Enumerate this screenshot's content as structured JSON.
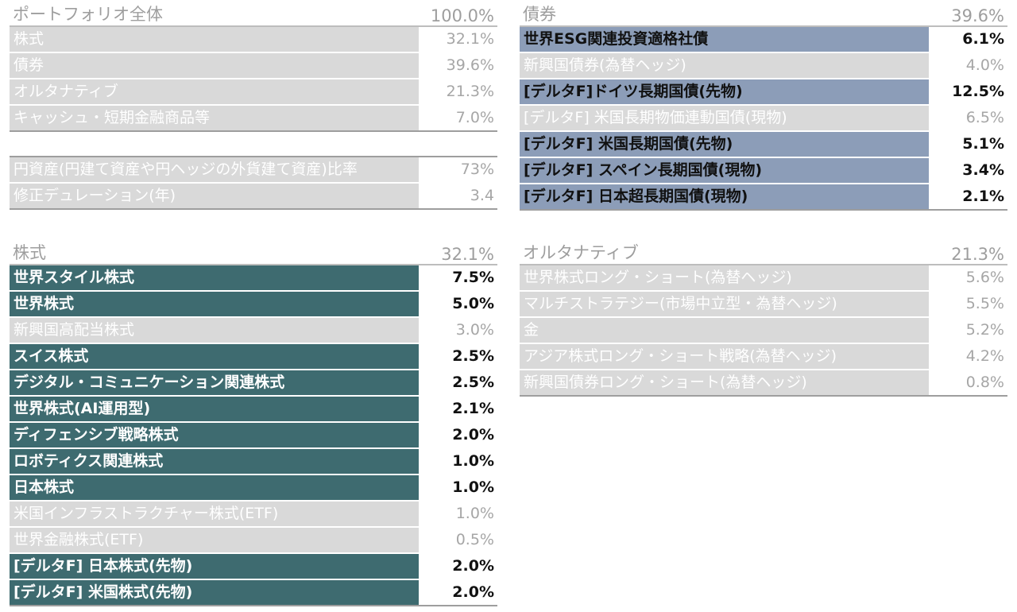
{
  "portfolio": {
    "title": "ポートフォリオ全体",
    "total": "100.0%",
    "rows": [
      {
        "label": "株式",
        "value": "32.1%"
      },
      {
        "label": "債券",
        "value": "39.6%"
      },
      {
        "label": "オルタナティブ",
        "value": "21.3%"
      },
      {
        "label": "キャッシュ・短期金融商品等",
        "value": "7.0%"
      }
    ],
    "extra_rows": [
      {
        "label": "円資産(円建て資産や円ヘッジの外貨建て資産)比率",
        "value": "73%"
      },
      {
        "label": "修正デュレーション(年)",
        "value": "3.4"
      }
    ]
  },
  "bonds": {
    "title": "債券",
    "total": "39.6%",
    "rows": [
      {
        "label": "世界ESG関連投資適格社債",
        "value": "6.1%"
      },
      {
        "label": "新興国債券(為替ヘッジ)",
        "value": "4.0%"
      },
      {
        "label": "[デルタF]ドイツ長期国債(先物)",
        "value": "12.5%"
      },
      {
        "label": "[デルタF] 米国長期物価連動国債(現物)",
        "value": "6.5%"
      },
      {
        "label": "[デルタF] 米国長期国債(先物)",
        "value": "5.1%"
      },
      {
        "label": "[デルタF] スペイン長期国債(現物)",
        "value": "3.4%"
      },
      {
        "label": "[デルタF] 日本超長期国債(現物)",
        "value": "2.1%"
      }
    ]
  },
  "equity": {
    "title": "株式",
    "total": "32.1%",
    "rows": [
      {
        "label": "世界スタイル株式",
        "value": "7.5%"
      },
      {
        "label": "世界株式",
        "value": "5.0%"
      },
      {
        "label": "新興国高配当株式",
        "value": "3.0%"
      },
      {
        "label": "スイス株式",
        "value": "2.5%"
      },
      {
        "label": "デジタル・コミュニケーション関連株式",
        "value": "2.5%"
      },
      {
        "label": "世界株式(AI運用型)",
        "value": "2.1%"
      },
      {
        "label": "ディフェンシブ戦略株式",
        "value": "2.0%"
      },
      {
        "label": "ロボティクス関連株式",
        "value": "1.0%"
      },
      {
        "label": "日本株式",
        "value": "1.0%"
      },
      {
        "label": "米国インフラストラクチャー株式(ETF)",
        "value": "1.0%"
      },
      {
        "label": "世界金融株式(ETF)",
        "value": "0.5%"
      },
      {
        "label": "[デルタF] 日本株式(先物)",
        "value": "2.0%"
      },
      {
        "label": "[デルタF] 米国株式(先物)",
        "value": "2.0%"
      }
    ]
  },
  "alternatives": {
    "title": "オルタナティブ",
    "total": "21.3%",
    "rows": [
      {
        "label": "世界株式ロング・ショート(為替ヘッジ)",
        "value": "5.6%"
      },
      {
        "label": "マルチストラテジー(市場中立型・為替ヘッジ)",
        "value": "5.5%"
      },
      {
        "label": "金",
        "value": "5.2%"
      },
      {
        "label": "アジア株式ロング・ショート戦略(為替ヘッジ)",
        "value": "4.2%"
      },
      {
        "label": "新興国債券ロング・ショート(為替ヘッジ)",
        "value": "0.8%"
      }
    ]
  },
  "colors": {
    "teal_highlight": "#3e6b70",
    "blue_highlight": "#8c9db8",
    "light_row": "#d9d9d9",
    "header_text": "#9e9e9e"
  }
}
